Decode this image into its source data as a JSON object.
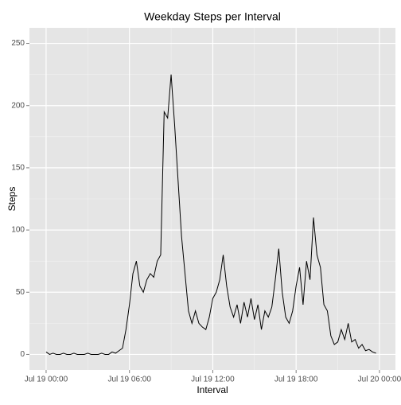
{
  "chart_data": {
    "type": "line",
    "title": "Weekday Steps per Interval",
    "x_label": "Interval",
    "y_label": "Steps",
    "x": [
      0,
      0.25,
      0.5,
      0.75,
      1,
      1.25,
      1.5,
      1.75,
      2,
      2.25,
      2.5,
      2.75,
      3,
      3.25,
      3.5,
      3.75,
      4,
      4.25,
      4.5,
      4.75,
      5,
      5.25,
      5.5,
      5.75,
      6,
      6.25,
      6.5,
      6.75,
      7,
      7.25,
      7.5,
      7.75,
      8,
      8.25,
      8.5,
      8.75,
      9,
      9.25,
      9.5,
      9.75,
      10,
      10.25,
      10.5,
      10.75,
      11,
      11.25,
      11.5,
      11.75,
      12,
      12.25,
      12.5,
      12.75,
      13,
      13.25,
      13.5,
      13.75,
      14,
      14.25,
      14.5,
      14.75,
      15,
      15.25,
      15.5,
      15.75,
      16,
      16.25,
      16.5,
      16.75,
      17,
      17.25,
      17.5,
      17.75,
      18,
      18.25,
      18.5,
      18.75,
      19,
      19.25,
      19.5,
      19.75,
      20,
      20.25,
      20.5,
      20.75,
      21,
      21.25,
      21.5,
      21.75,
      22,
      22.25,
      22.5,
      22.75,
      23,
      23.25,
      23.5,
      23.75
    ],
    "series": [
      {
        "name": "Steps",
        "color": "#000000",
        "values": [
          2,
          0,
          1,
          0,
          0,
          1,
          0,
          0,
          1,
          0,
          0,
          0,
          1,
          0,
          0,
          0,
          1,
          0,
          0,
          2,
          1,
          3,
          5,
          20,
          40,
          65,
          75,
          55,
          50,
          60,
          65,
          62,
          75,
          80,
          195,
          190,
          225,
          185,
          140,
          95,
          65,
          35,
          25,
          35,
          25,
          22,
          20,
          30,
          45,
          50,
          60,
          80,
          55,
          38,
          30,
          40,
          25,
          42,
          30,
          45,
          28,
          40,
          20,
          35,
          30,
          38,
          60,
          85,
          50,
          30,
          25,
          35,
          55,
          70,
          40,
          75,
          60,
          110,
          80,
          70,
          40,
          35,
          15,
          8,
          10,
          20,
          12,
          25,
          10,
          12,
          5,
          8,
          3,
          4,
          2,
          1
        ]
      }
    ],
    "xlim": [
      -1.2,
      25.15
    ],
    "xticks": [
      {
        "value": 0,
        "label": "Jul 19 00:00"
      },
      {
        "value": 6,
        "label": "Jul 19 06:00"
      },
      {
        "value": 12,
        "label": "Jul 19 12:00"
      },
      {
        "value": 18,
        "label": "Jul 19 18:00"
      },
      {
        "value": 24,
        "label": "Jul 20 00:00"
      }
    ],
    "x_minor_ticks": [
      3,
      9,
      15,
      21
    ],
    "ylim": [
      -12.5,
      262.5
    ],
    "yticks": [
      0,
      50,
      100,
      150,
      200,
      250
    ],
    "y_minor_ticks": [
      25,
      75,
      125,
      175,
      225
    ],
    "grid": true
  }
}
